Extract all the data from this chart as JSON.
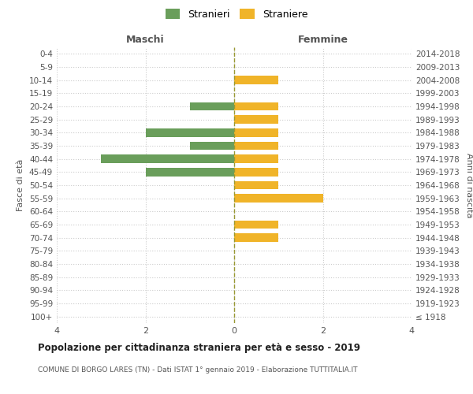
{
  "age_groups": [
    "100+",
    "95-99",
    "90-94",
    "85-89",
    "80-84",
    "75-79",
    "70-74",
    "65-69",
    "60-64",
    "55-59",
    "50-54",
    "45-49",
    "40-44",
    "35-39",
    "30-34",
    "25-29",
    "20-24",
    "15-19",
    "10-14",
    "5-9",
    "0-4"
  ],
  "birth_years": [
    "≤ 1918",
    "1919-1923",
    "1924-1928",
    "1929-1933",
    "1934-1938",
    "1939-1943",
    "1944-1948",
    "1949-1953",
    "1954-1958",
    "1959-1963",
    "1964-1968",
    "1969-1973",
    "1974-1978",
    "1979-1983",
    "1984-1988",
    "1989-1993",
    "1994-1998",
    "1999-2003",
    "2004-2008",
    "2009-2013",
    "2014-2018"
  ],
  "males": [
    0,
    0,
    0,
    0,
    0,
    0,
    0,
    0,
    0,
    0,
    0,
    2,
    3,
    1,
    2,
    0,
    1,
    0,
    0,
    0,
    0
  ],
  "females": [
    0,
    0,
    0,
    0,
    0,
    0,
    1,
    1,
    0,
    2,
    1,
    1,
    1,
    1,
    1,
    1,
    1,
    0,
    1,
    0,
    0
  ],
  "male_color": "#6a9e5b",
  "female_color": "#f0b429",
  "title": "Popolazione per cittadinanza straniera per età e sesso - 2019",
  "subtitle": "COMUNE DI BORGO LARES (TN) - Dati ISTAT 1° gennaio 2019 - Elaborazione TUTTITALIA.IT",
  "legend_male": "Stranieri",
  "legend_female": "Straniere",
  "label_maschi": "Maschi",
  "label_femmine": "Femmine",
  "ylabel_left": "Fasce di età",
  "ylabel_right": "Anni di nascita",
  "xlim": 4,
  "background_color": "#ffffff",
  "grid_color": "#cccccc",
  "axis_color": "#999999"
}
